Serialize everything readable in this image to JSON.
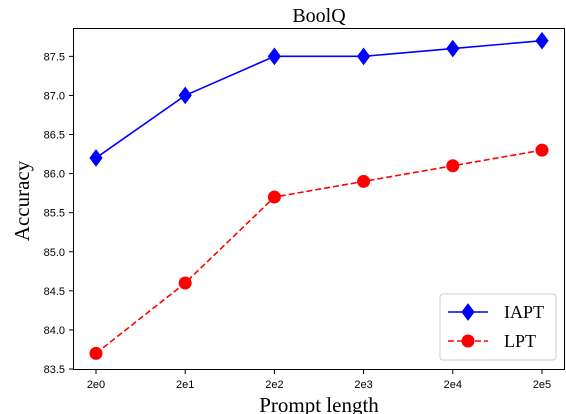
{
  "chart_data": {
    "type": "line",
    "title": "BoolQ",
    "xlabel": "Prompt length",
    "ylabel": "Accuracy",
    "categories": [
      "2e0",
      "2e1",
      "2e2",
      "2e3",
      "2e4",
      "2e5"
    ],
    "yticks": [
      "83.5",
      "84.0",
      "84.5",
      "85.0",
      "85.5",
      "86.0",
      "86.5",
      "87.0",
      "87.5"
    ],
    "ylim": [
      83.5,
      87.85
    ],
    "grid": false,
    "legend_position": "bottom-right",
    "series": [
      {
        "name": "IAPT",
        "color": "#0000ff",
        "line_style": "solid",
        "marker": "diamond",
        "values": [
          86.2,
          87.0,
          87.5,
          87.5,
          87.6,
          87.7
        ]
      },
      {
        "name": "LPT",
        "color": "#ff0000",
        "line_style": "dashed",
        "marker": "circle",
        "values": [
          83.7,
          84.6,
          85.7,
          85.9,
          86.1,
          86.3
        ]
      }
    ]
  }
}
